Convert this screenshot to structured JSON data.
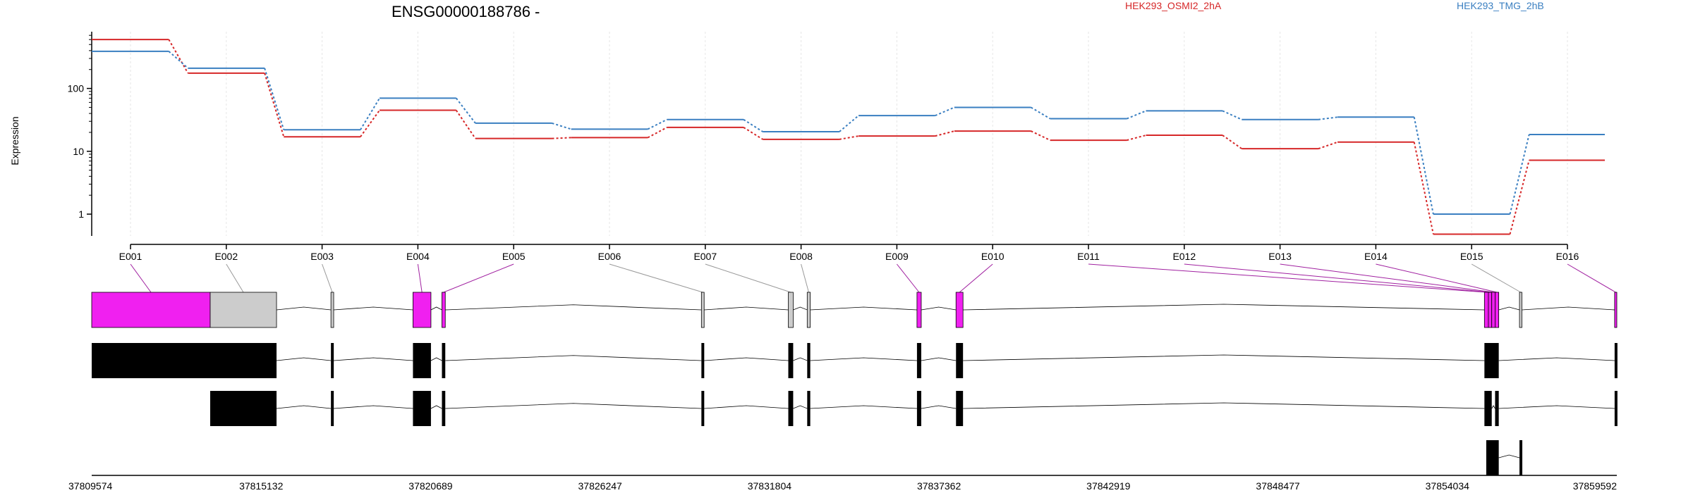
{
  "chart_data": {
    "type": "line",
    "title": "ENSG00000188786 -",
    "ylabel": "Expression",
    "xlabel": "",
    "y_scale": "log",
    "ylim": [
      0.45,
      800
    ],
    "y_ticks": [
      1,
      10,
      100
    ],
    "y_tick_labels": [
      "1",
      "10",
      "100"
    ],
    "grid": "vertical dashed at exon ticks",
    "legend_placement": "top",
    "categories": [
      "E001",
      "E002",
      "E003",
      "E004",
      "E005",
      "E006",
      "E007",
      "E008",
      "E009",
      "E010",
      "E011",
      "E012",
      "E013",
      "E014",
      "E015",
      "E016"
    ],
    "series": [
      {
        "name": "HEK293_OSMI2_2hA",
        "color": "#d62728",
        "values": [
          600,
          175,
          17,
          45,
          16,
          16.5,
          24,
          15.5,
          17.5,
          21,
          15,
          18,
          11,
          14,
          0.48,
          7.2
        ]
      },
      {
        "name": "HEK293_TMG_2hB",
        "color": "#3a7fc1",
        "values": [
          390,
          210,
          22,
          70,
          28,
          22.5,
          32,
          20.5,
          37,
          50,
          33,
          44,
          32,
          35,
          1.0,
          18.5
        ]
      }
    ],
    "gene_model": {
      "genomic_coordinates": [
        "37809574",
        "37815132",
        "37820689",
        "37826247",
        "37831804",
        "37837362",
        "37842919",
        "37848477",
        "37854034",
        "37859592"
      ],
      "genomic_range": [
        37809574,
        37859592
      ],
      "exon_bins": [
        {
          "id": "E001",
          "start": 37809574,
          "end": 37813460,
          "highlighted": true
        },
        {
          "id": "E002",
          "start": 37813460,
          "end": 37815636,
          "highlighted": false
        },
        {
          "id": "E003",
          "start": 37817420,
          "end": 37817510,
          "highlighted": false
        },
        {
          "id": "E004",
          "start": 37820110,
          "end": 37820700,
          "highlighted": true
        },
        {
          "id": "E005",
          "start": 37821060,
          "end": 37821170,
          "highlighted": true
        },
        {
          "id": "E006",
          "start": 37829570,
          "end": 37829660,
          "highlighted": false
        },
        {
          "id": "E007",
          "start": 37832420,
          "end": 37832580,
          "highlighted": false
        },
        {
          "id": "E008",
          "start": 37833040,
          "end": 37833140,
          "highlighted": false
        },
        {
          "id": "E009",
          "start": 37836640,
          "end": 37836780,
          "highlighted": true
        },
        {
          "id": "E010",
          "start": 37837920,
          "end": 37838150,
          "highlighted": true
        },
        {
          "id": "E011",
          "start": 37855250,
          "end": 37855380,
          "highlighted": true
        },
        {
          "id": "E012",
          "start": 37855380,
          "end": 37855490,
          "highlighted": true
        },
        {
          "id": "E013",
          "start": 37855490,
          "end": 37855600,
          "highlighted": true
        },
        {
          "id": "E014",
          "start": 37855600,
          "end": 37855720,
          "highlighted": true
        },
        {
          "id": "E015",
          "start": 37856400,
          "end": 37856480,
          "highlighted": false
        },
        {
          "id": "E016",
          "start": 37859520,
          "end": 37859592,
          "highlighted": true
        }
      ],
      "transcripts": [
        {
          "exons": [
            [
              37809574,
              37815636
            ],
            [
              37817420,
              37817510
            ],
            [
              37820110,
              37820700
            ],
            [
              37821060,
              37821170
            ],
            [
              37829570,
              37829660
            ],
            [
              37832420,
              37832580
            ],
            [
              37833040,
              37833140
            ],
            [
              37836640,
              37836780
            ],
            [
              37837920,
              37838150
            ],
            [
              37855250,
              37855720
            ],
            [
              37859520,
              37859592
            ]
          ]
        },
        {
          "exons": [
            [
              37813460,
              37815636
            ],
            [
              37817420,
              37817510
            ],
            [
              37820110,
              37820700
            ],
            [
              37821060,
              37821170
            ],
            [
              37829570,
              37829660
            ],
            [
              37832420,
              37832580
            ],
            [
              37833040,
              37833140
            ],
            [
              37836640,
              37836780
            ],
            [
              37837920,
              37838150
            ],
            [
              37855250,
              37855490
            ],
            [
              37855600,
              37855720
            ],
            [
              37859520,
              37859592
            ]
          ]
        },
        {
          "exons": [
            [
              37855310,
              37855720
            ],
            [
              37856400,
              37856480
            ]
          ]
        }
      ]
    }
  },
  "colors": {
    "highlight_exon": "#f020f0",
    "plain_exon": "#cccccc",
    "transcript_exon": "#000000"
  }
}
